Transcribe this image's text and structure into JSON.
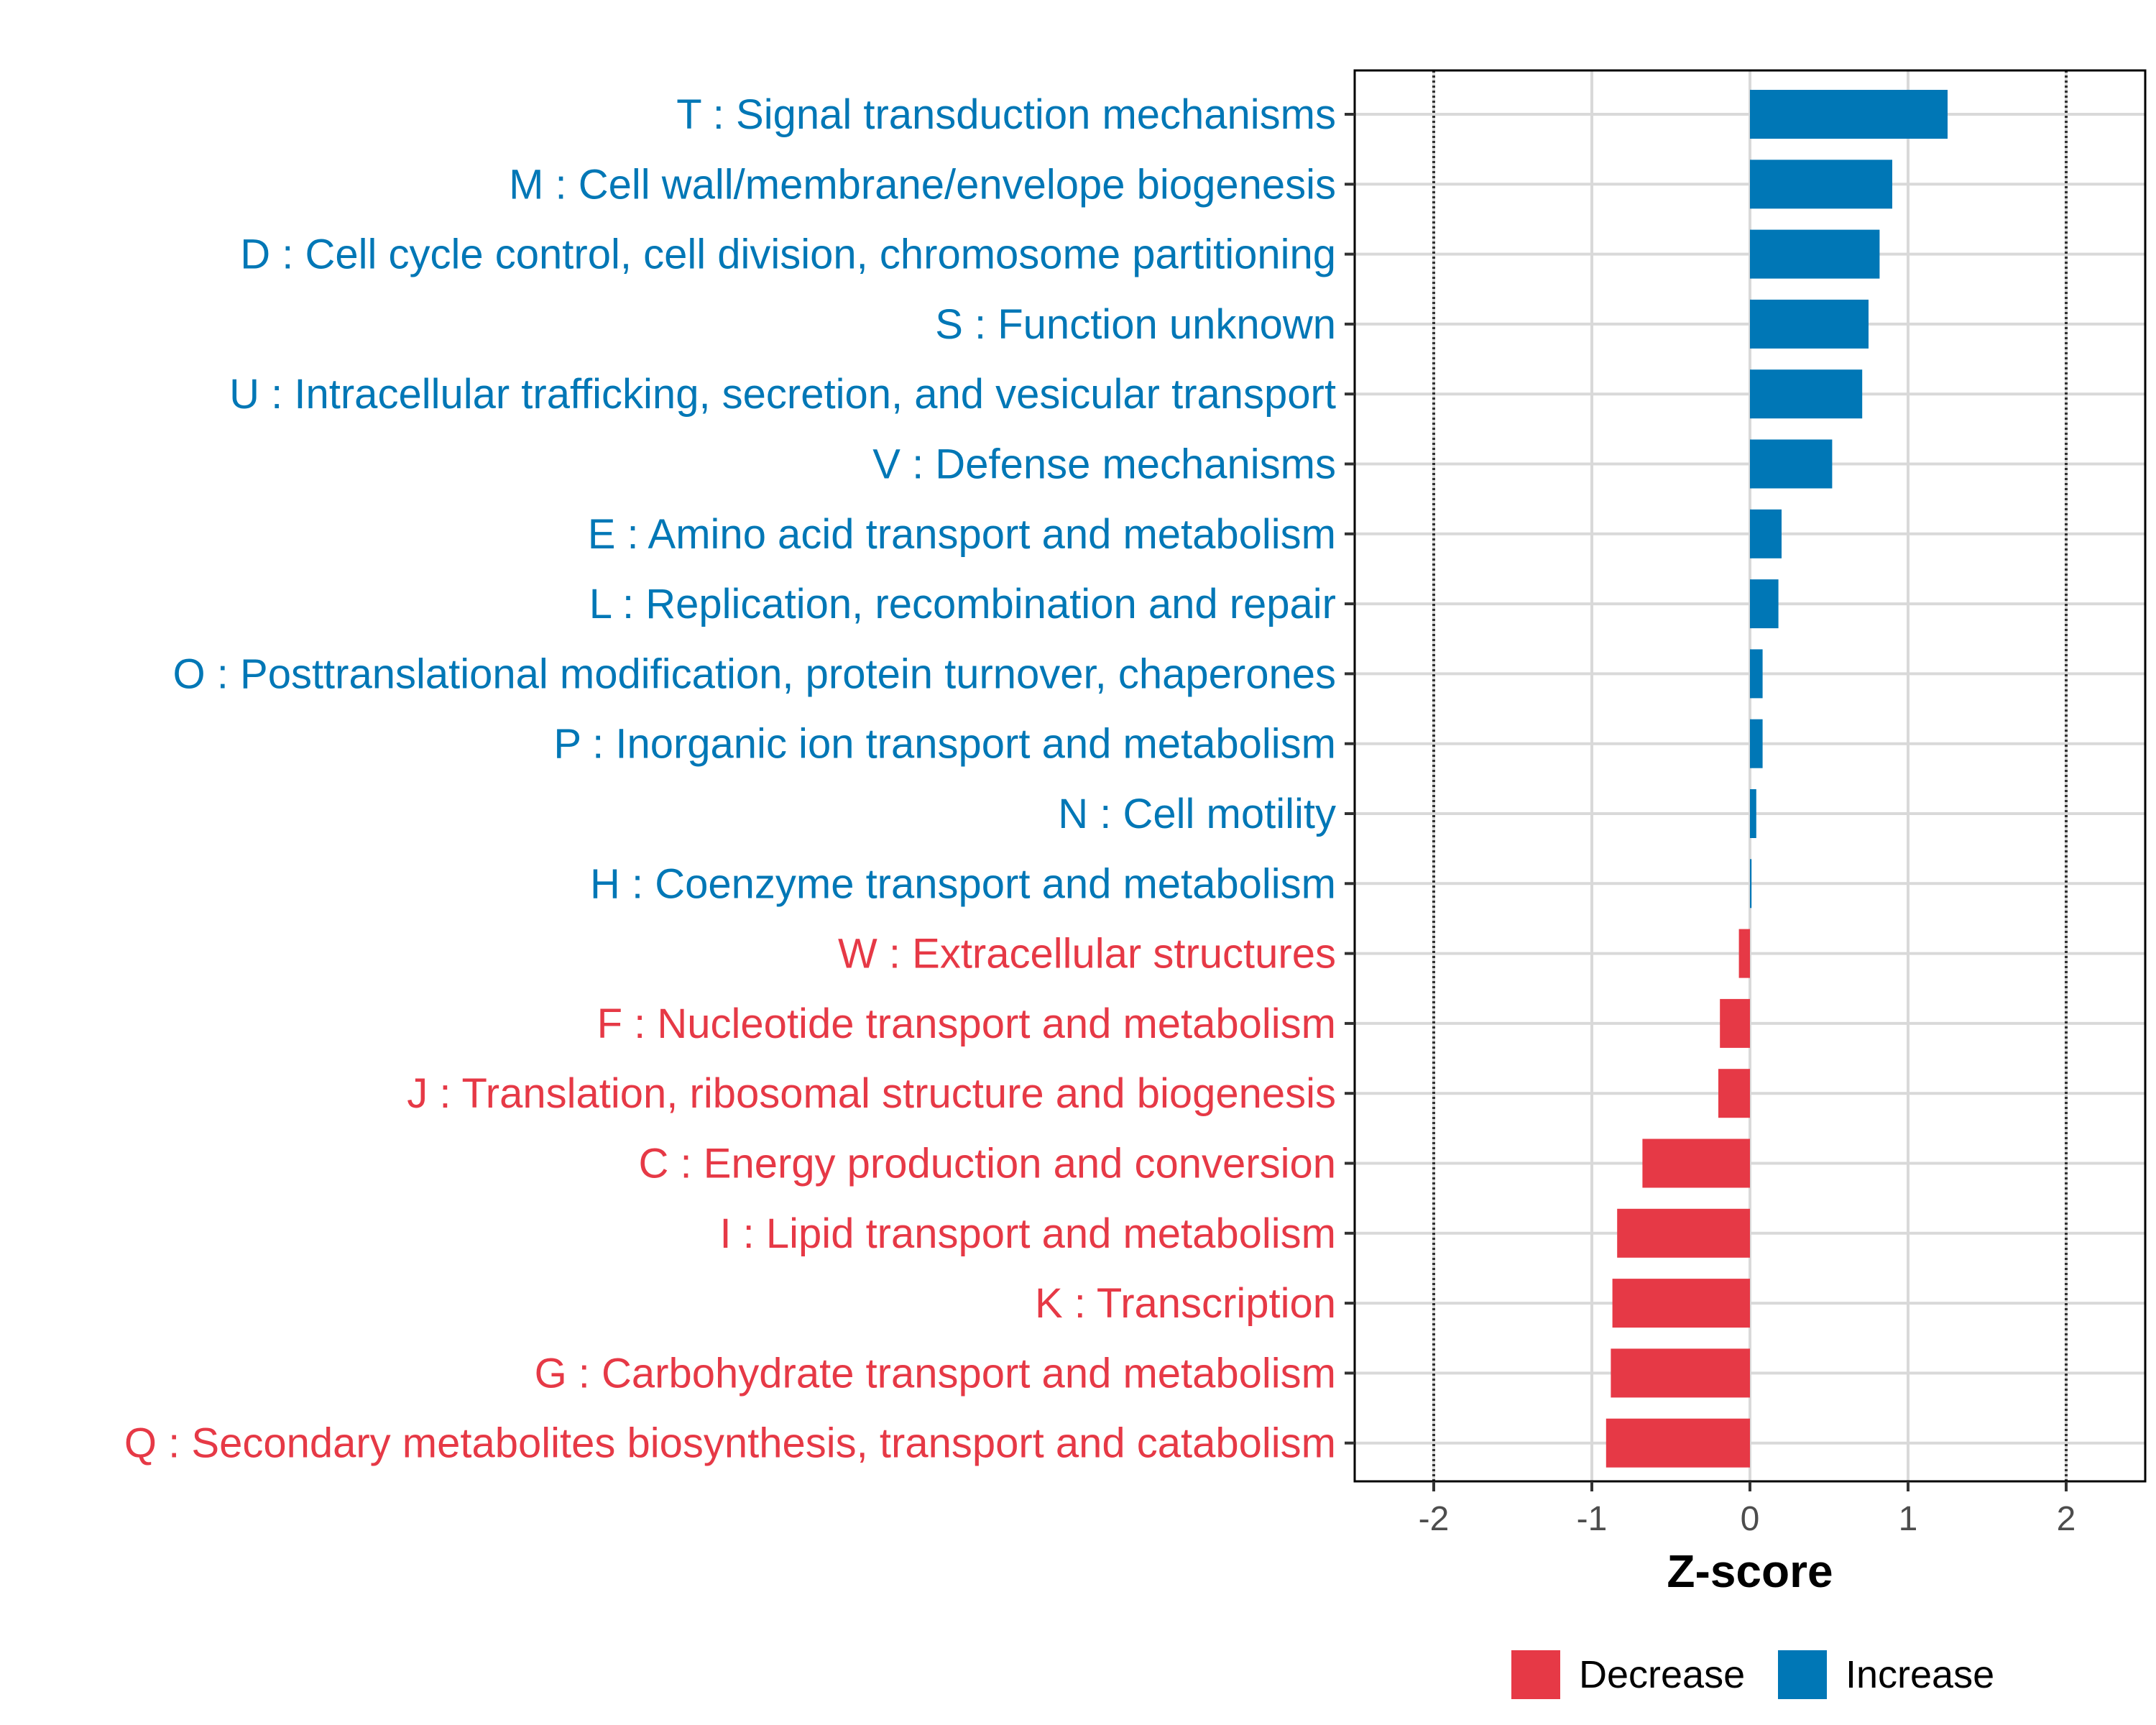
{
  "chart_data": {
    "type": "bar",
    "orientation": "horizontal",
    "title": "",
    "xlabel": "Z-score",
    "ylabel": "",
    "xlim": [
      -2.5,
      2.5
    ],
    "x_ticks": [
      "-2",
      "-1",
      "0",
      "1",
      "2"
    ],
    "x_tick_values": [
      -2,
      -1,
      0,
      1,
      2
    ],
    "reference_lines": [
      -2,
      2
    ],
    "grid": true,
    "categories": [
      "T : Signal transduction mechanisms",
      "M : Cell wall/membrane/envelope biogenesis",
      "D : Cell cycle control, cell division, chromosome partitioning",
      "S : Function unknown",
      "U : Intracellular trafficking, secretion, and vesicular transport",
      "V : Defense mechanisms",
      "E : Amino acid transport and metabolism",
      "L : Replication, recombination and repair",
      "O : Posttranslational modification, protein turnover, chaperones",
      "P : Inorganic ion transport and metabolism",
      "N : Cell motility",
      "H : Coenzyme transport and metabolism",
      "W : Extracellular structures",
      "F : Nucleotide transport and metabolism",
      "J : Translation, ribosomal structure and biogenesis",
      "C : Energy production and conversion",
      "I : Lipid transport and metabolism",
      "K : Transcription",
      "G : Carbohydrate transport and metabolism",
      "Q : Secondary metabolites biosynthesis, transport and catabolism"
    ],
    "values": [
      1.25,
      0.9,
      0.82,
      0.75,
      0.71,
      0.52,
      0.2,
      0.18,
      0.08,
      0.08,
      0.04,
      0.01,
      -0.07,
      -0.19,
      -0.2,
      -0.68,
      -0.84,
      -0.87,
      -0.88,
      -0.91
    ],
    "groups": [
      "Increase",
      "Increase",
      "Increase",
      "Increase",
      "Increase",
      "Increase",
      "Increase",
      "Increase",
      "Increase",
      "Increase",
      "Increase",
      "Increase",
      "Decrease",
      "Decrease",
      "Decrease",
      "Decrease",
      "Decrease",
      "Decrease",
      "Decrease",
      "Decrease"
    ],
    "legend": {
      "position": "bottom",
      "entries": [
        {
          "label": "Decrease",
          "color": "#E63946"
        },
        {
          "label": "Increase",
          "color": "#0077B6"
        }
      ]
    },
    "colors": {
      "Increase": "#0077B6",
      "Decrease": "#E63946"
    }
  }
}
